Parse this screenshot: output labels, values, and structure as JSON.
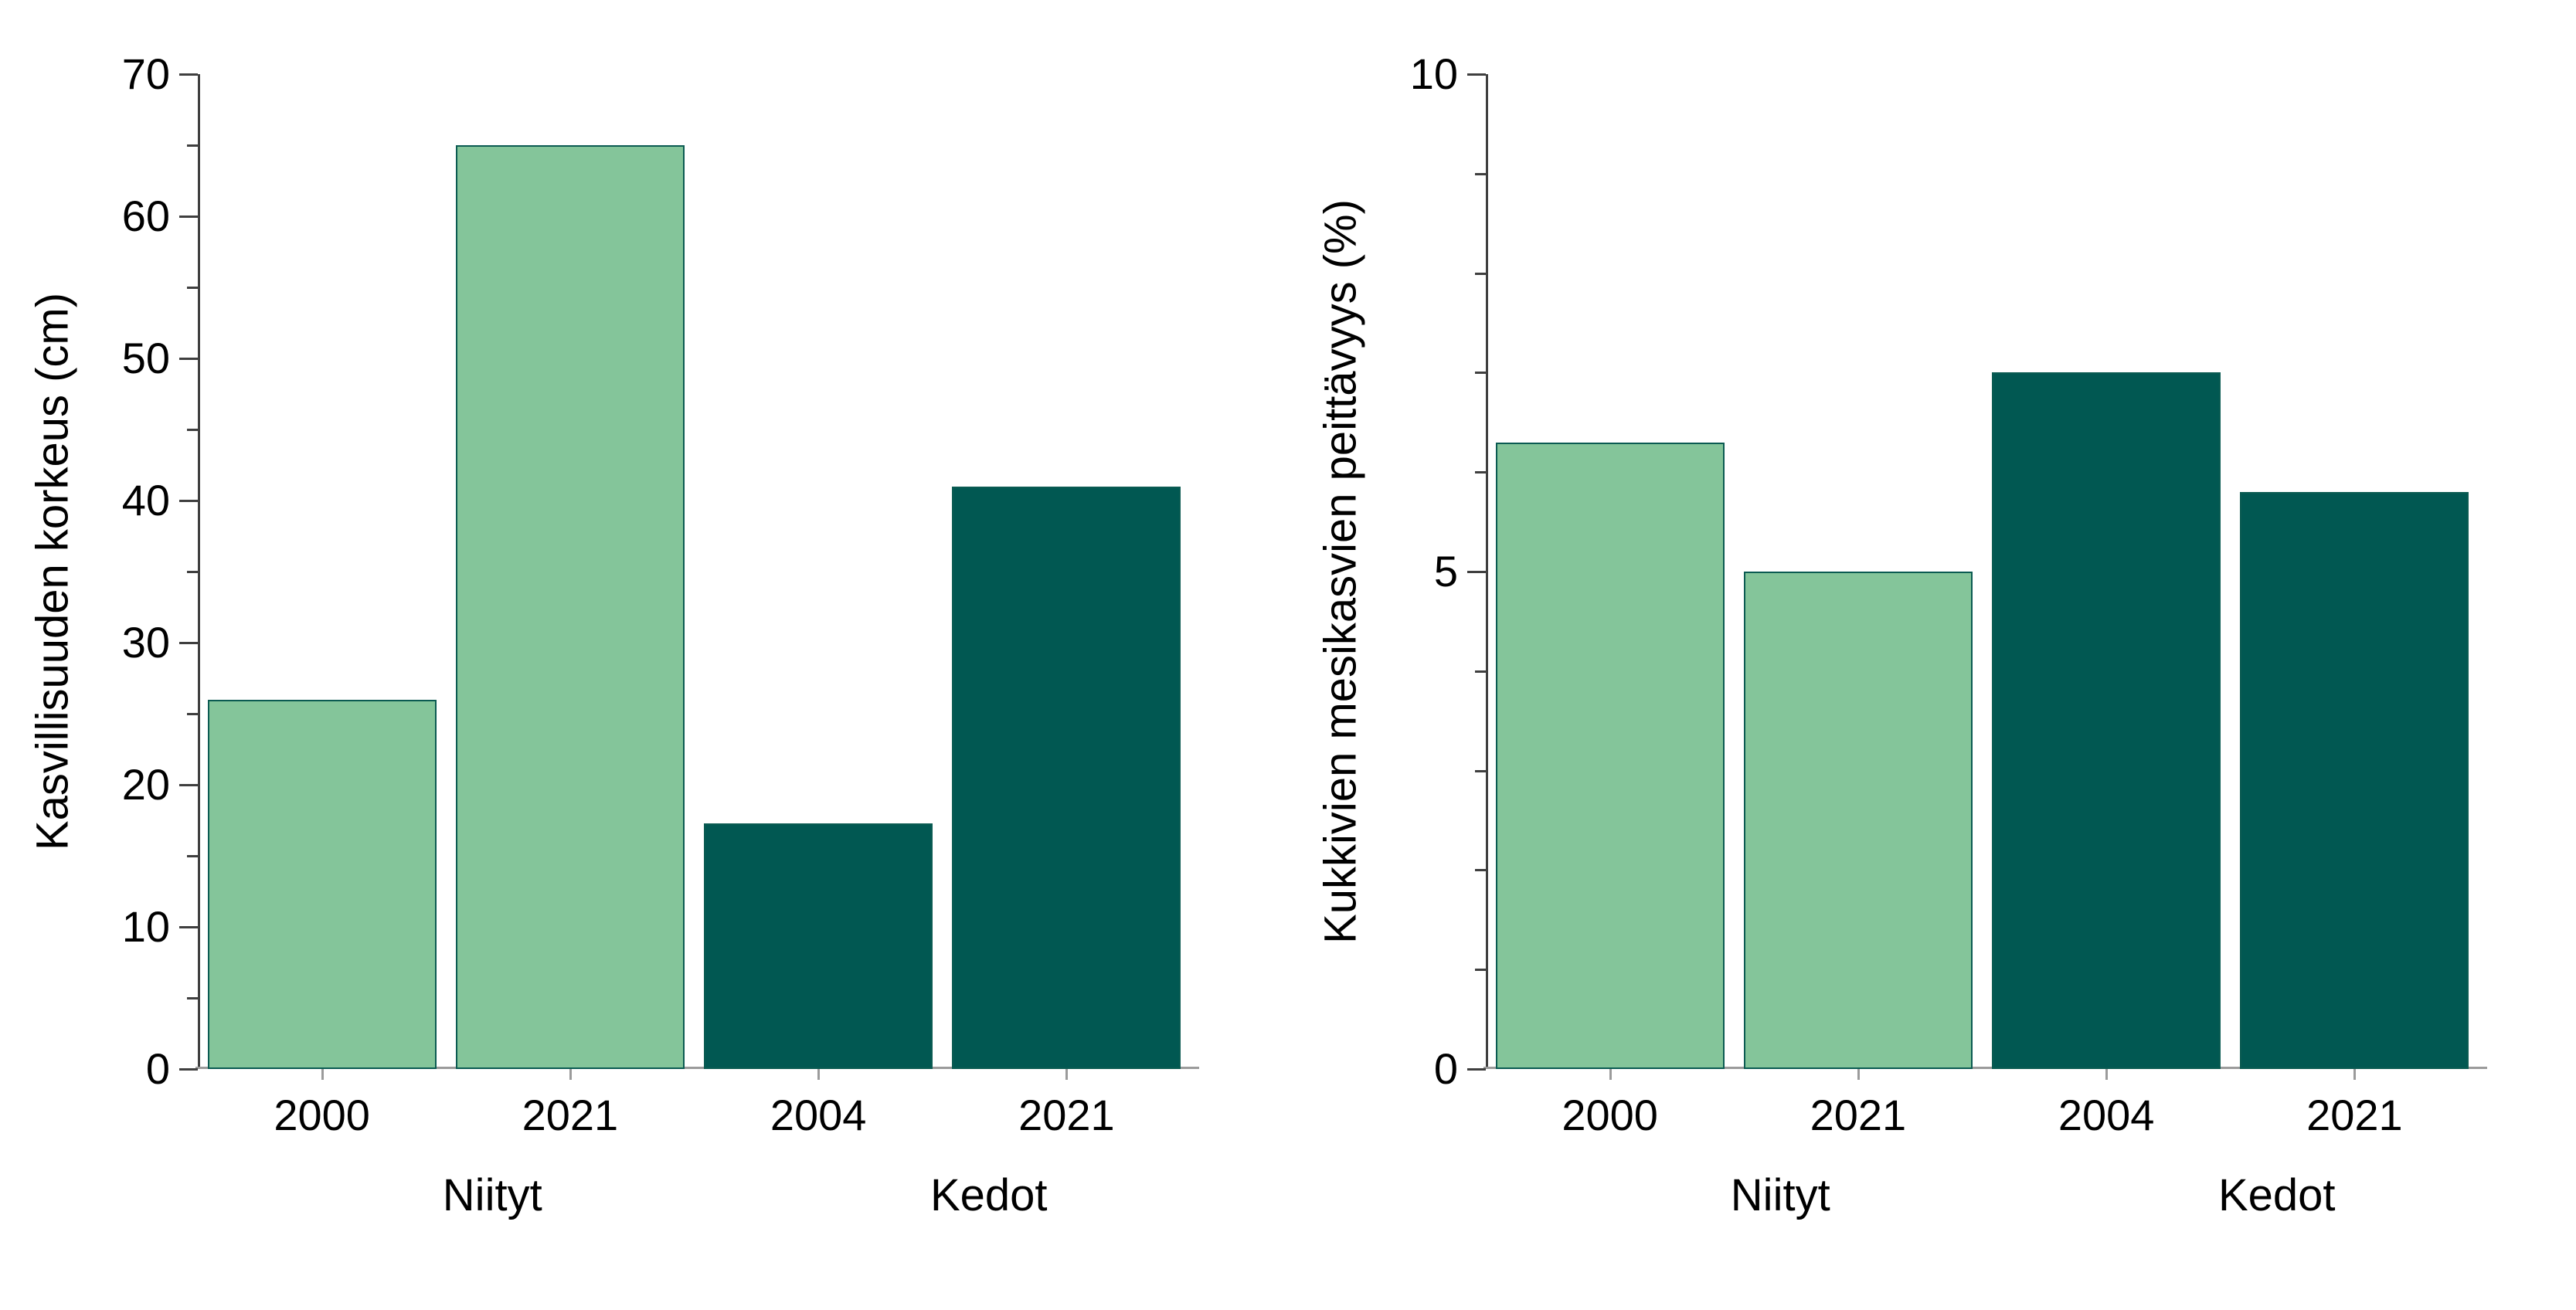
{
  "background": "#ffffff",
  "palette": {
    "light_green": "#84C59A",
    "dark_teal": "#015852",
    "bar_edge": "#0b5b52",
    "y_axis": "#3f3f3f",
    "x_axis": "#9b9b9b",
    "text": "#000000"
  },
  "chart_data": [
    {
      "type": "bar",
      "title": "",
      "xlabel": "",
      "ylabel": "Kasvillisuuden korkeus (cm)",
      "ylim": [
        0,
        70
      ],
      "ytick_label_step": 10,
      "ytick_minor_step": 5,
      "grid": false,
      "legend_position": "none",
      "categories": [
        "2000",
        "2021",
        "2004",
        "2021"
      ],
      "group_labels": [
        "Niityt",
        "Kedot"
      ],
      "values": [
        26,
        65,
        17.3,
        41
      ],
      "bar_colors": [
        "light_green",
        "light_green",
        "dark_teal",
        "dark_teal"
      ]
    },
    {
      "type": "bar",
      "title": "",
      "xlabel": "",
      "ylabel": "Kukkivien mesikasvien peittävyys (%)",
      "ylim": [
        0,
        10
      ],
      "ytick_label_step": 5,
      "ytick_minor_step": 1,
      "grid": false,
      "legend_position": "none",
      "categories": [
        "2000",
        "2021",
        "2004",
        "2021"
      ],
      "group_labels": [
        "Niityt",
        "Kedot"
      ],
      "values": [
        6.3,
        5,
        7,
        5.8
      ],
      "bar_colors": [
        "light_green",
        "light_green",
        "dark_teal",
        "dark_teal"
      ]
    }
  ]
}
